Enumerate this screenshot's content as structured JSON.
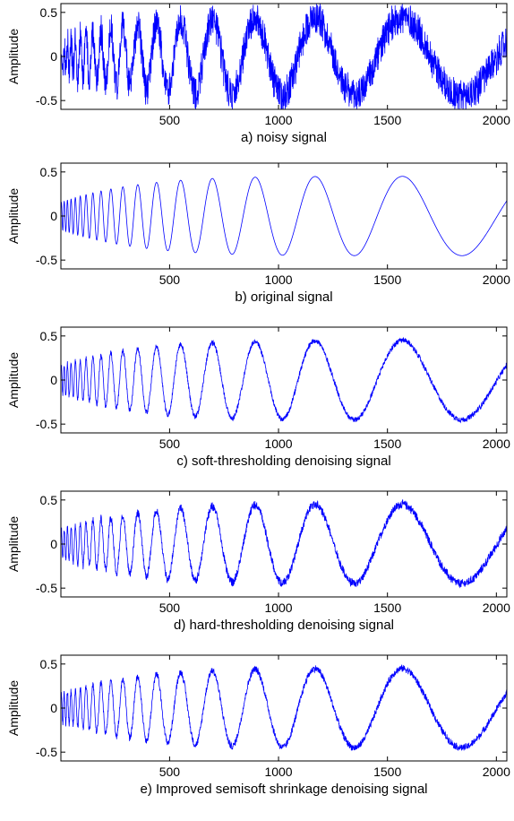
{
  "chart_data": [
    {
      "type": "line",
      "caption": "a) noisy signal",
      "ylabel": "Amplitude",
      "xlim": [
        1,
        2048
      ],
      "ylim": [
        -0.6,
        0.6
      ],
      "xticks": [
        500,
        1000,
        1500,
        2000
      ],
      "yticks": [
        0.5,
        0,
        -0.5
      ],
      "series": [
        {
          "kind": "noisy_chirp",
          "color": "#0000ff",
          "samples": 2048,
          "noise_amplitude": 0.22
        }
      ]
    },
    {
      "type": "line",
      "caption": "b) original signal",
      "ylabel": "Amplitude",
      "xlim": [
        1,
        2048
      ],
      "ylim": [
        -0.6,
        0.6
      ],
      "xticks": [
        500,
        1000,
        1500,
        2000
      ],
      "yticks": [
        0.5,
        0,
        -0.5
      ],
      "series": [
        {
          "kind": "chirp",
          "color": "#0000ff",
          "samples": 2048,
          "noise_amplitude": 0.0
        }
      ]
    },
    {
      "type": "line",
      "caption": "c) soft-thresholding denoising signal",
      "ylabel": "Amplitude",
      "xlim": [
        1,
        2048
      ],
      "ylim": [
        -0.6,
        0.6
      ],
      "xticks": [
        500,
        1000,
        1500,
        2000
      ],
      "yticks": [
        0.5,
        0,
        -0.5
      ],
      "series": [
        {
          "kind": "denoised_chirp",
          "color": "#0000ff",
          "samples": 2048,
          "noise_amplitude": 0.035
        }
      ]
    },
    {
      "type": "line",
      "caption": "d) hard-thresholding denoising signal",
      "ylabel": "Amplitude",
      "xlim": [
        1,
        2048
      ],
      "ylim": [
        -0.6,
        0.6
      ],
      "xticks": [
        500,
        1000,
        1500,
        2000
      ],
      "yticks": [
        0.5,
        0,
        -0.5
      ],
      "series": [
        {
          "kind": "denoised_chirp",
          "color": "#0000ff",
          "samples": 2048,
          "noise_amplitude": 0.055
        }
      ]
    },
    {
      "type": "line",
      "caption": "e) Improved semisoft shrinkage denoising signal",
      "ylabel": "Amplitude",
      "xlim": [
        1,
        2048
      ],
      "ylim": [
        -0.6,
        0.6
      ],
      "xticks": [
        500,
        1000,
        1500,
        2000
      ],
      "yticks": [
        0.5,
        0,
        -0.5
      ],
      "series": [
        {
          "kind": "denoised_chirp",
          "color": "#0000ff",
          "samples": 2048,
          "noise_amplitude": 0.045
        }
      ]
    }
  ]
}
